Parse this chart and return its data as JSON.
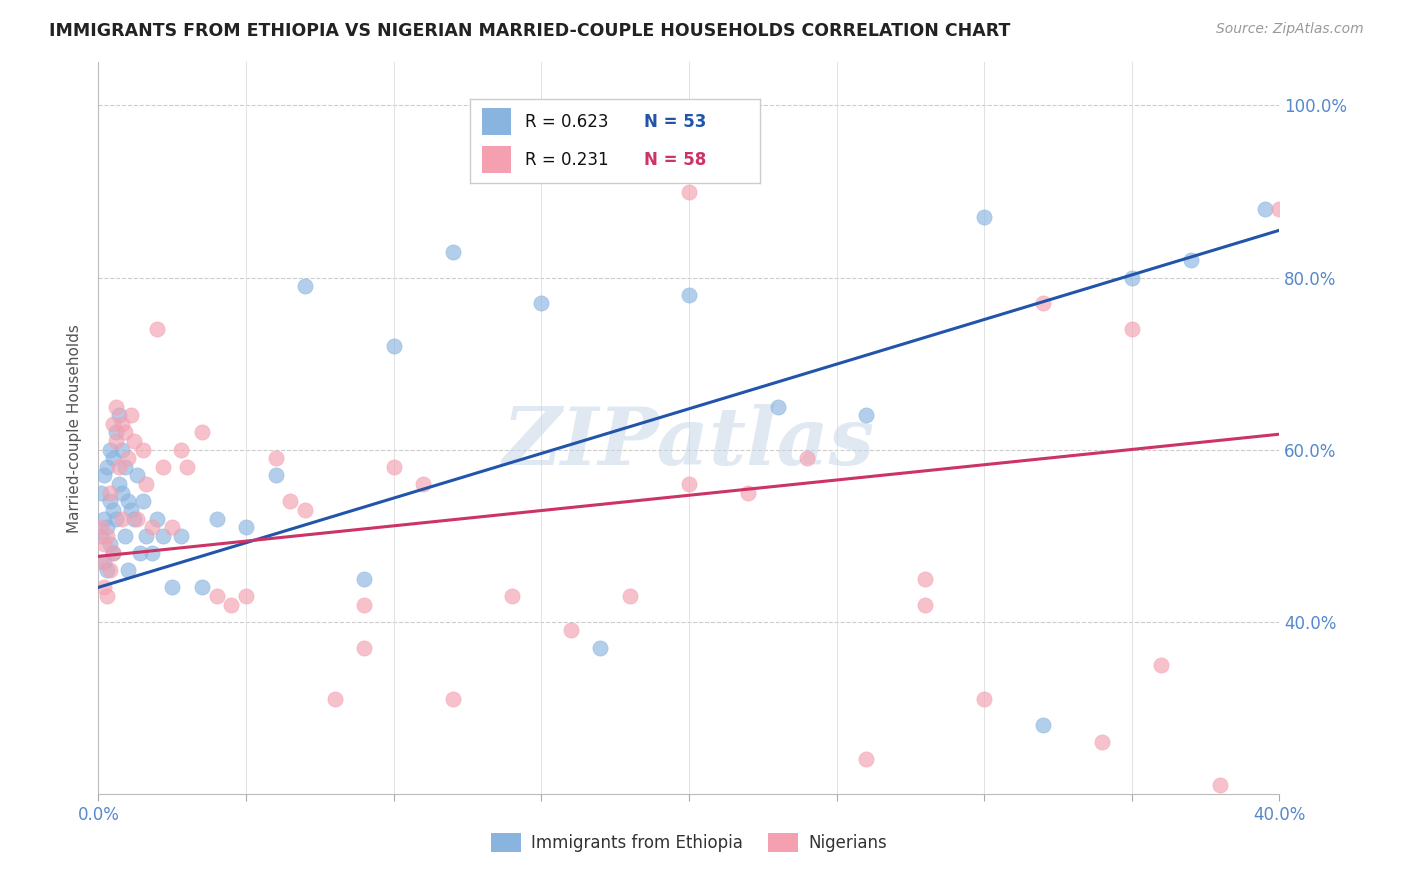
{
  "title": "IMMIGRANTS FROM ETHIOPIA VS NIGERIAN MARRIED-COUPLE HOUSEHOLDS CORRELATION CHART",
  "source": "Source: ZipAtlas.com",
  "ylabel": "Married-couple Households",
  "xlim": [
    0.0,
    0.4
  ],
  "ylim": [
    0.2,
    1.05
  ],
  "yticks": [
    0.4,
    0.6,
    0.8,
    1.0
  ],
  "ytick_labels": [
    "40.0%",
    "60.0%",
    "80.0%",
    "100.0%"
  ],
  "xticks": [
    0.0,
    0.05,
    0.1,
    0.15,
    0.2,
    0.25,
    0.3,
    0.35,
    0.4
  ],
  "xtick_labels": [
    "0.0%",
    "",
    "",
    "",
    "",
    "",
    "",
    "",
    "40.0%"
  ],
  "blue_color": "#8ab4e0",
  "pink_color": "#f4a0b0",
  "blue_line_color": "#2255aa",
  "pink_line_color": "#cc3366",
  "axis_color": "#5588cc",
  "watermark": "ZIPatlas",
  "legend_R1": "0.623",
  "legend_N1": "53",
  "legend_R2": "0.231",
  "legend_N2": "58",
  "legend_label1": "Immigrants from Ethiopia",
  "legend_label2": "Nigerians",
  "blue_line_x0": 0.0,
  "blue_line_y0": 0.44,
  "blue_line_x1": 0.4,
  "blue_line_y1": 0.855,
  "pink_line_x0": 0.0,
  "pink_line_y0": 0.476,
  "pink_line_x1": 0.4,
  "pink_line_y1": 0.618,
  "blue_x": [
    0.001,
    0.001,
    0.002,
    0.002,
    0.002,
    0.003,
    0.003,
    0.003,
    0.004,
    0.004,
    0.004,
    0.005,
    0.005,
    0.005,
    0.006,
    0.006,
    0.007,
    0.007,
    0.008,
    0.008,
    0.009,
    0.009,
    0.01,
    0.01,
    0.011,
    0.012,
    0.013,
    0.014,
    0.015,
    0.016,
    0.018,
    0.02,
    0.022,
    0.025,
    0.028,
    0.035,
    0.04,
    0.05,
    0.06,
    0.07,
    0.09,
    0.1,
    0.12,
    0.15,
    0.17,
    0.2,
    0.23,
    0.26,
    0.3,
    0.32,
    0.35,
    0.37,
    0.395
  ],
  "blue_y": [
    0.5,
    0.55,
    0.47,
    0.52,
    0.57,
    0.46,
    0.51,
    0.58,
    0.49,
    0.54,
    0.6,
    0.48,
    0.53,
    0.59,
    0.52,
    0.62,
    0.56,
    0.64,
    0.6,
    0.55,
    0.58,
    0.5,
    0.54,
    0.46,
    0.53,
    0.52,
    0.57,
    0.48,
    0.54,
    0.5,
    0.48,
    0.52,
    0.5,
    0.44,
    0.5,
    0.44,
    0.52,
    0.51,
    0.57,
    0.79,
    0.45,
    0.72,
    0.83,
    0.77,
    0.37,
    0.78,
    0.65,
    0.64,
    0.87,
    0.28,
    0.8,
    0.82,
    0.88
  ],
  "pink_x": [
    0.001,
    0.001,
    0.002,
    0.002,
    0.003,
    0.003,
    0.004,
    0.004,
    0.005,
    0.005,
    0.006,
    0.006,
    0.007,
    0.008,
    0.008,
    0.009,
    0.01,
    0.011,
    0.012,
    0.013,
    0.015,
    0.016,
    0.018,
    0.02,
    0.022,
    0.025,
    0.028,
    0.03,
    0.035,
    0.04,
    0.045,
    0.05,
    0.06,
    0.065,
    0.07,
    0.08,
    0.09,
    0.1,
    0.11,
    0.12,
    0.14,
    0.16,
    0.18,
    0.2,
    0.22,
    0.24,
    0.26,
    0.28,
    0.3,
    0.32,
    0.34,
    0.36,
    0.38,
    0.2,
    0.28,
    0.35,
    0.4,
    0.09
  ],
  "pink_y": [
    0.47,
    0.51,
    0.44,
    0.49,
    0.43,
    0.5,
    0.46,
    0.55,
    0.63,
    0.48,
    0.61,
    0.65,
    0.58,
    0.52,
    0.63,
    0.62,
    0.59,
    0.64,
    0.61,
    0.52,
    0.6,
    0.56,
    0.51,
    0.74,
    0.58,
    0.51,
    0.6,
    0.58,
    0.62,
    0.43,
    0.42,
    0.43,
    0.59,
    0.54,
    0.53,
    0.31,
    0.37,
    0.58,
    0.56,
    0.31,
    0.43,
    0.39,
    0.43,
    0.56,
    0.55,
    0.59,
    0.24,
    0.45,
    0.31,
    0.77,
    0.26,
    0.35,
    0.21,
    0.9,
    0.42,
    0.74,
    0.88,
    0.42
  ]
}
